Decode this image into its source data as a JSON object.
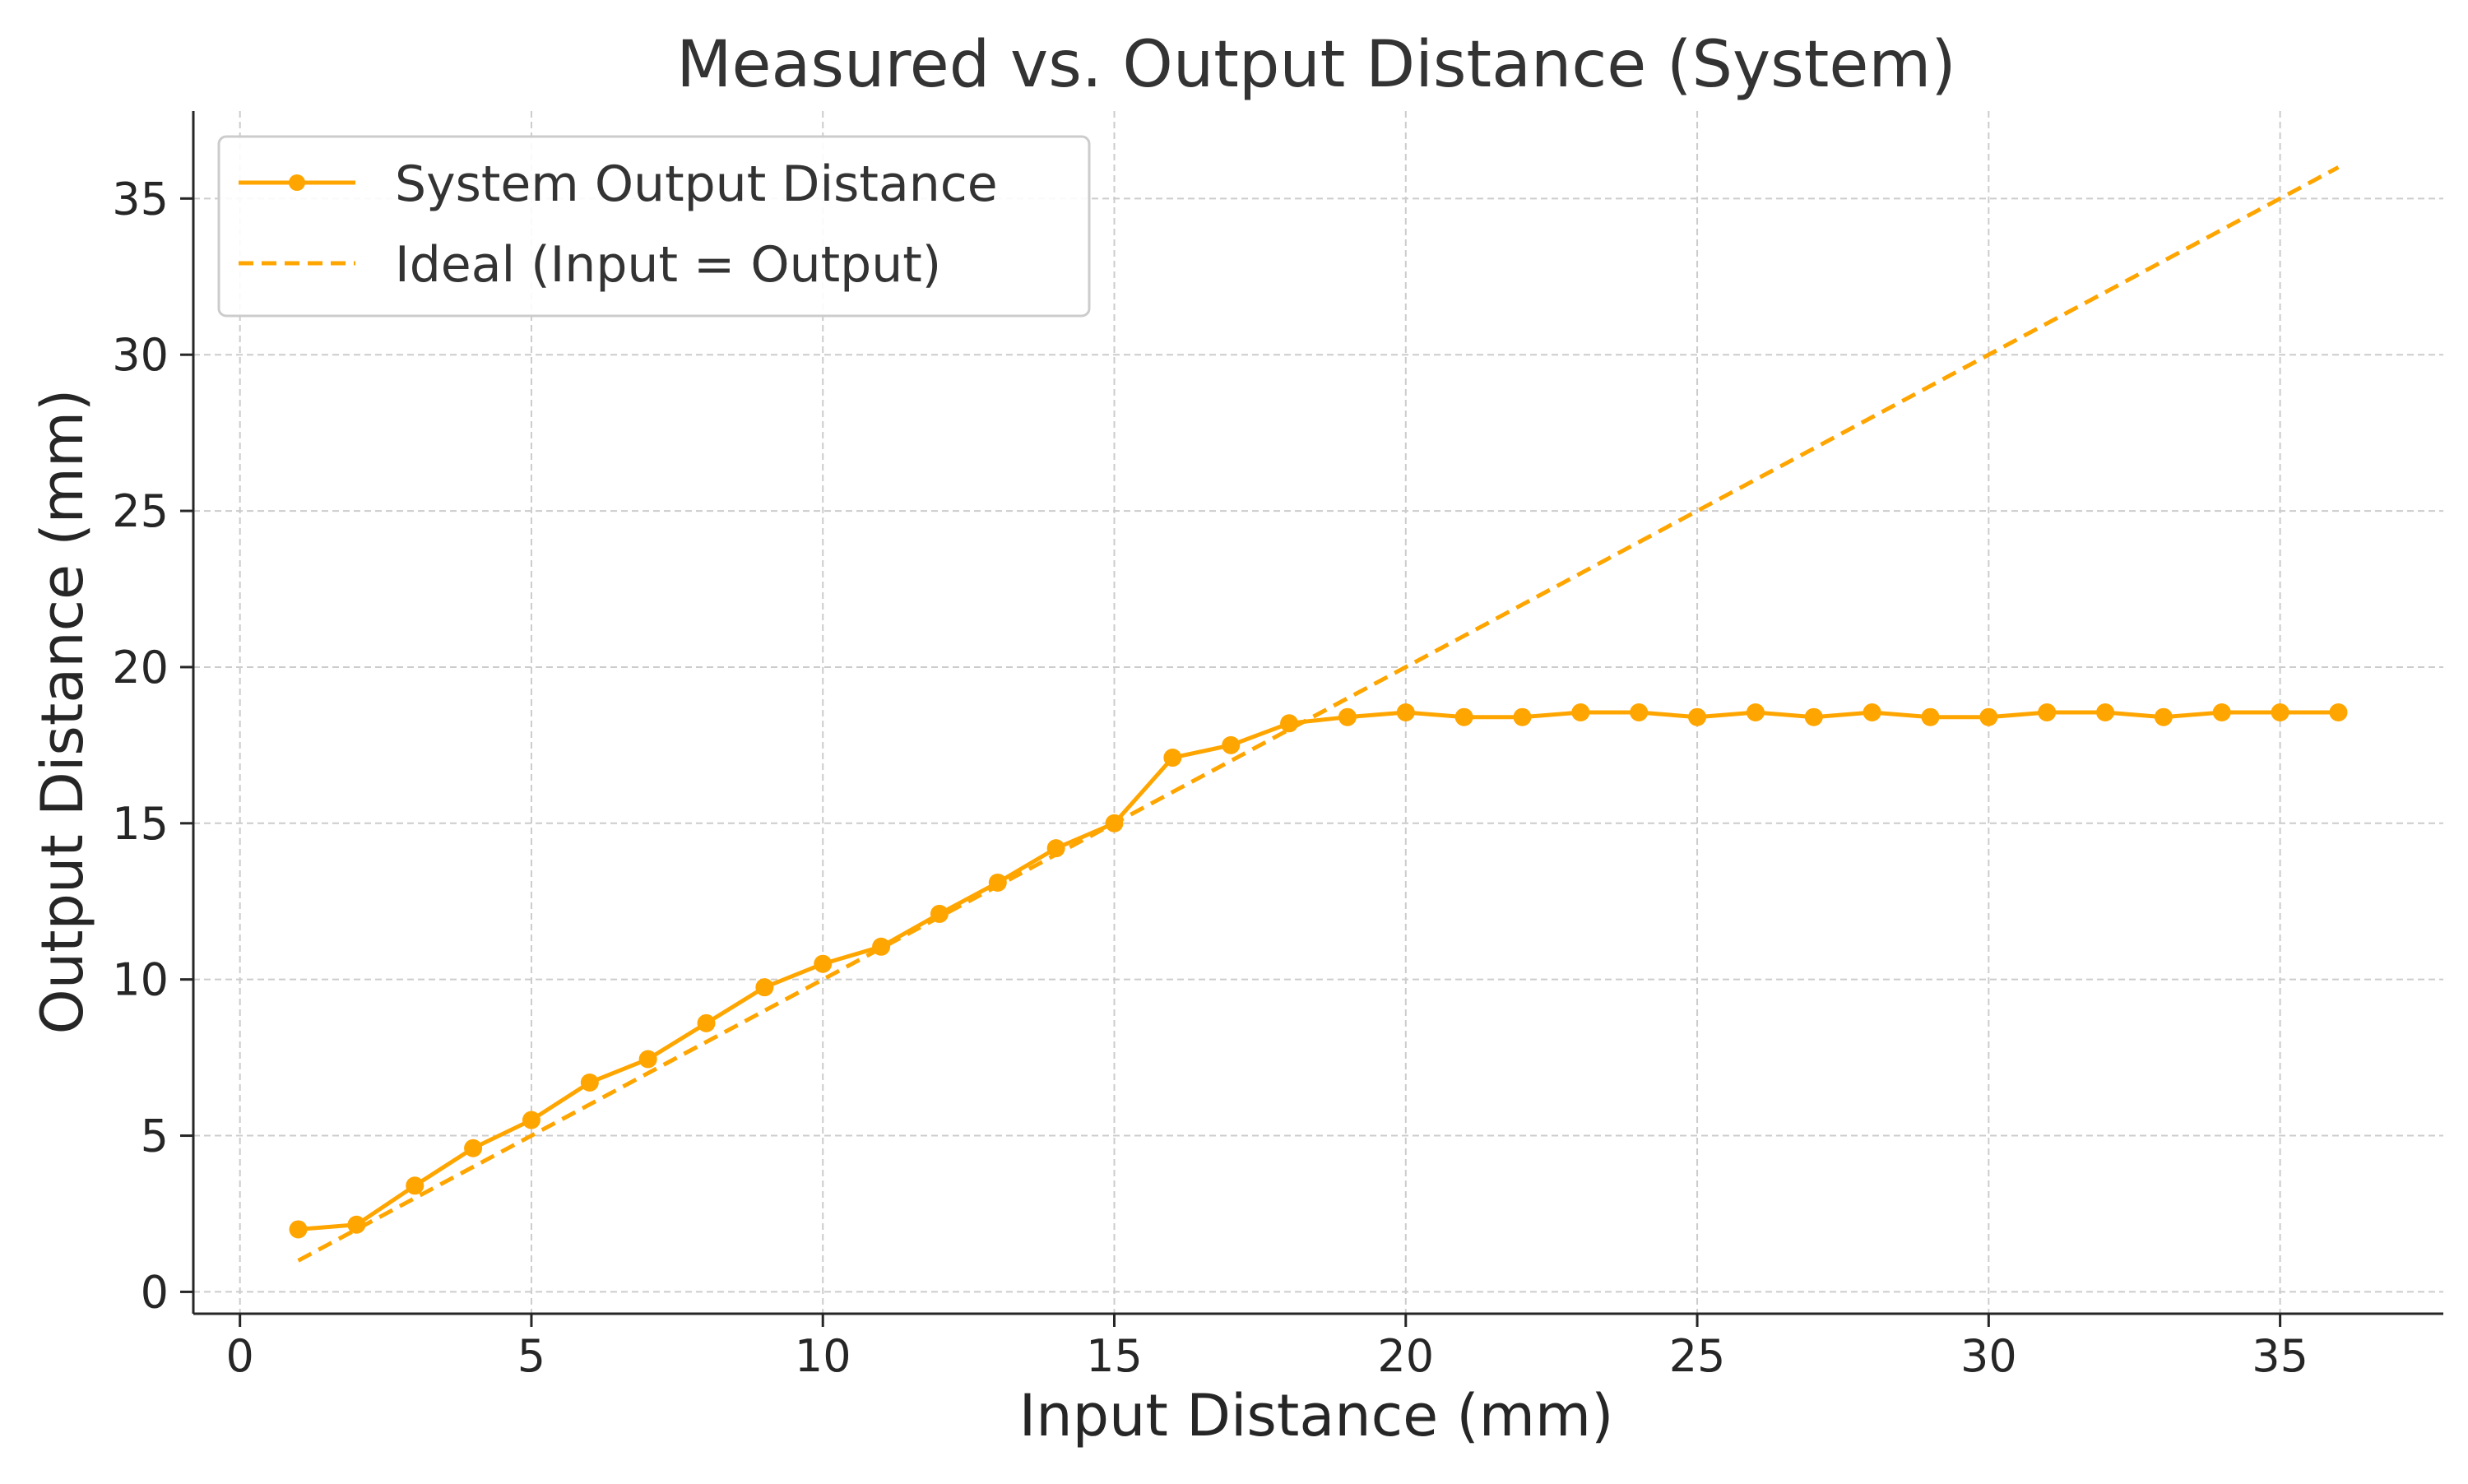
{
  "chart_data": {
    "type": "line",
    "title": "Measured vs. Output Distance (System)",
    "xlabel": "Input Distance (mm)",
    "ylabel": "Output Distance (mm)",
    "xlim": [
      -0.8,
      37.8
    ],
    "ylim": [
      -0.7,
      37.8
    ],
    "xticks": [
      0,
      5,
      10,
      15,
      20,
      25,
      30,
      35
    ],
    "yticks": [
      0,
      5,
      10,
      15,
      20,
      25,
      30,
      35
    ],
    "grid": true,
    "legend_position": "top-left",
    "series": [
      {
        "name": "System Output Distance",
        "style": "solid-with-markers",
        "color": "#FFA500",
        "x": [
          1,
          2,
          3,
          4,
          5,
          6,
          7,
          8,
          9,
          10,
          11,
          12,
          13,
          14,
          15,
          16,
          17,
          18,
          19,
          20,
          21,
          22,
          23,
          24,
          25,
          26,
          27,
          28,
          29,
          30,
          31,
          32,
          33,
          34,
          35,
          36
        ],
        "y": [
          2.0,
          2.15,
          3.4,
          4.6,
          5.5,
          6.7,
          7.45,
          8.6,
          9.75,
          10.5,
          11.05,
          12.1,
          13.1,
          14.2,
          15.0,
          17.1,
          17.5,
          18.2,
          18.4,
          18.55,
          18.4,
          18.4,
          18.55,
          18.55,
          18.4,
          18.55,
          18.4,
          18.55,
          18.4,
          18.4,
          18.55,
          18.55,
          18.4,
          18.55,
          18.55,
          18.55
        ]
      },
      {
        "name": "Ideal (Input = Output)",
        "style": "dashed",
        "color": "#FFA500",
        "x": [
          1,
          36
        ],
        "y": [
          1,
          36
        ]
      }
    ]
  }
}
